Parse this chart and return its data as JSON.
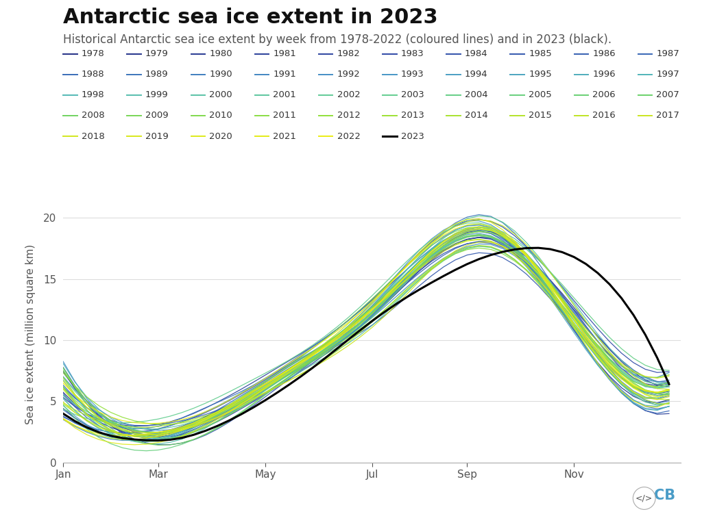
{
  "title": "Antarctic sea ice extent in 2023",
  "subtitle": "Historical Antarctic sea ice extent by week from 1978-2022 (coloured lines) and in 2023 (black).",
  "ylabel": "Sea ice extent (million square km)",
  "years": [
    1978,
    1979,
    1980,
    1981,
    1982,
    1983,
    1984,
    1985,
    1986,
    1987,
    1988,
    1989,
    1990,
    1991,
    1992,
    1993,
    1994,
    1995,
    1996,
    1997,
    1998,
    1999,
    2000,
    2001,
    2002,
    2003,
    2004,
    2005,
    2006,
    2007,
    2008,
    2009,
    2010,
    2011,
    2012,
    2013,
    2014,
    2015,
    2016,
    2017,
    2018,
    2019,
    2020,
    2021,
    2022,
    2023
  ],
  "xlim": [
    0,
    52
  ],
  "ylim": [
    0,
    21
  ],
  "yticks": [
    0,
    5,
    10,
    15,
    20
  ],
  "xtick_positions": [
    0,
    8,
    17,
    26,
    34,
    43
  ],
  "xtick_labels": [
    "Jan",
    "Mar",
    "May",
    "Jul",
    "Sep",
    "Nov"
  ],
  "background_color": "#ffffff",
  "title_fontsize": 22,
  "subtitle_fontsize": 12,
  "legend_fontsize": 9.5,
  "axis_fontsize": 11,
  "grid_color": "#dddddd",
  "spine_color": "#aaaaaa",
  "tick_color": "#555555",
  "ylabel_color": "#555555",
  "title_color": "#111111",
  "subtitle_color": "#555555"
}
